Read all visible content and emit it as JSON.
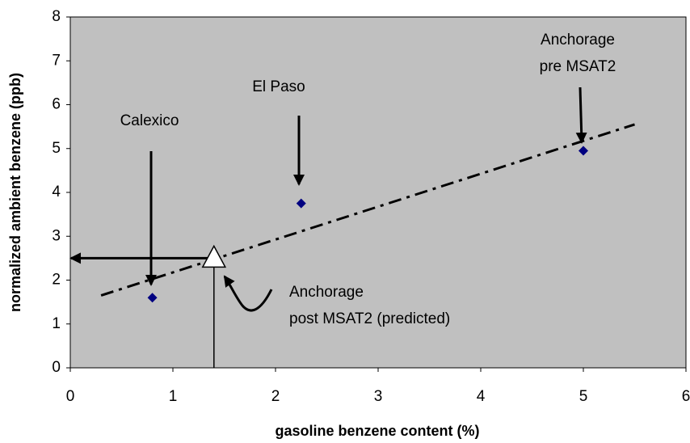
{
  "chart_data": {
    "type": "scatter",
    "xlabel": "gasoline benzene content (%)",
    "ylabel": "normalized ambient benzene (ppb)",
    "x": [
      0.8,
      2.25,
      5
    ],
    "values": [
      1.6,
      3.75,
      4.95
    ],
    "color": "#000080",
    "predicted": {
      "x": 1.4,
      "y": 2.5
    },
    "trendline": {
      "x": [
        0.3,
        5.5
      ],
      "y": [
        1.65,
        5.55
      ]
    },
    "annotations": [
      [
        "Calexico"
      ],
      [
        "El Paso"
      ],
      [
        "Anchorage",
        "pre MSAT2"
      ],
      [
        "Anchorage",
        "post MSAT2 (predicted)"
      ]
    ],
    "xlim": [
      0,
      6
    ],
    "xticks": [
      0,
      1,
      2,
      3,
      4,
      5,
      6
    ],
    "ylim": [
      0,
      8
    ],
    "yticks": [
      0,
      1,
      2,
      3,
      4,
      5,
      6,
      7,
      8
    ]
  }
}
